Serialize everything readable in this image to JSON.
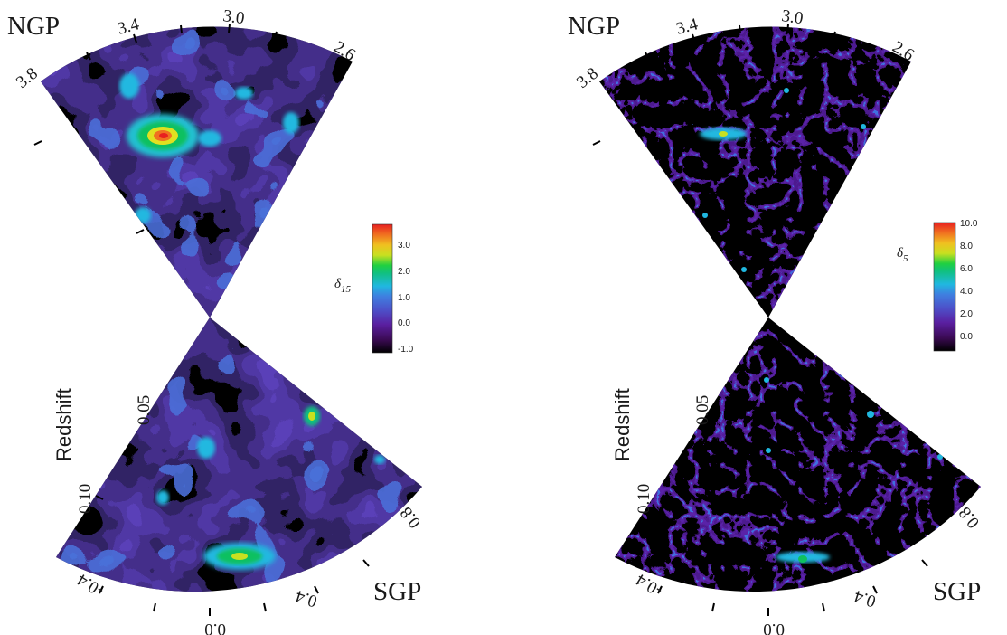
{
  "panels": [
    {
      "id": "left",
      "corner_top": "NGP",
      "corner_bottom": "SGP",
      "ra_ticks_top": [
        "3.8",
        "3.4",
        "3.0",
        "2.6"
      ],
      "ra_ticks_bottom": [
        "-0.4",
        "0.0",
        "0.4",
        "0.8"
      ],
      "redshift_label": "Redshift",
      "redshift_ticks": [
        "0.05",
        "0.10"
      ],
      "colorbar": {
        "label": "δ",
        "label_sub": "15",
        "ticks": [
          "3.0",
          "2.0",
          "1.0",
          "0.0",
          "-1.0"
        ]
      }
    },
    {
      "id": "right",
      "corner_top": "NGP",
      "corner_bottom": "SGP",
      "ra_ticks_top": [
        "3.8",
        "3.4",
        "3.0",
        "2.6"
      ],
      "ra_ticks_bottom": [
        "-0.4",
        "0.0",
        "0.4",
        "0.8"
      ],
      "redshift_label": "Redshift",
      "redshift_ticks": [
        "0.05",
        "0.10"
      ],
      "colorbar": {
        "label": "δ",
        "label_sub": "5",
        "ticks": [
          "10.0",
          "8.0",
          "6.0",
          "4.0",
          "2.0",
          "0.0"
        ]
      }
    }
  ],
  "colors": {
    "background_wedge": "#000000",
    "scale": [
      "#000000",
      "#3a0a52",
      "#5a1fa0",
      "#4d4fc8",
      "#3f7fe0",
      "#20b8e0",
      "#10c080",
      "#20d040",
      "#c8e020",
      "#f0c020",
      "#f07020",
      "#e82020"
    ]
  }
}
